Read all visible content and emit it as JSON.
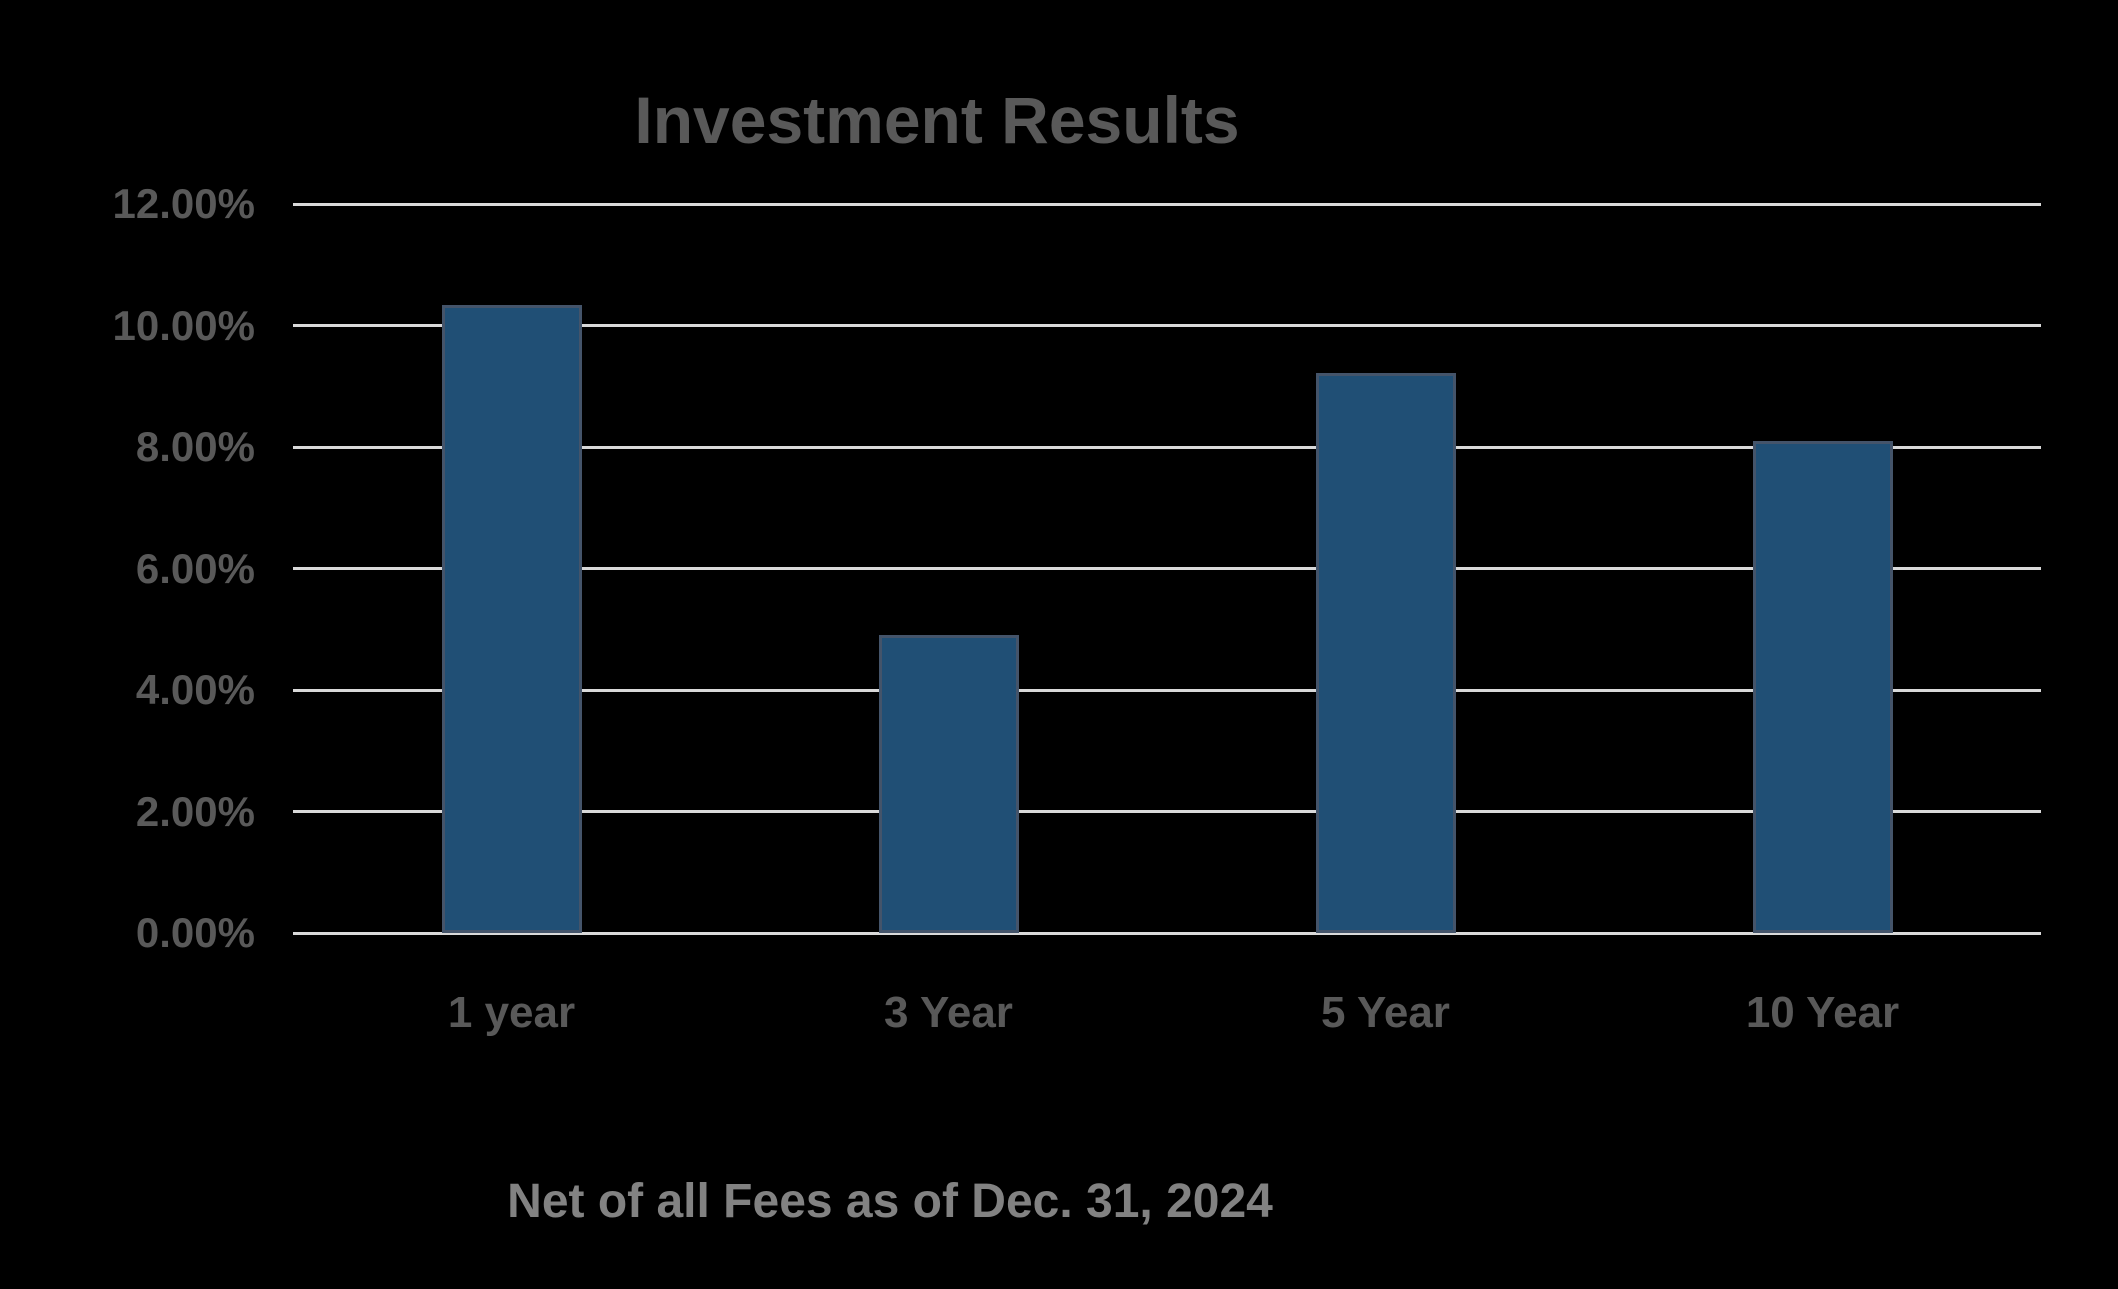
{
  "title": "Investment Results",
  "caption": "Net of all Fees as of Dec. 31, 2024",
  "colors": {
    "background": "#000000",
    "bar_fill": "#204F75",
    "bar_border": "#44546A",
    "gridline": "#D9D9D9",
    "title_text": "#595959",
    "axis_text": "#595959",
    "caption_text": "#828282"
  },
  "chart_data": {
    "type": "bar",
    "categories": [
      "1 year",
      "3 Year",
      "5 Year",
      "10 Year"
    ],
    "values": [
      10.33,
      4.9,
      9.21,
      8.1
    ],
    "title": "Investment Results",
    "subtitle": "Net of all Fees as of Dec. 31, 2024",
    "xlabel": "",
    "ylabel": "",
    "ylim": [
      0,
      12
    ],
    "ytick_step": 2,
    "ytick_labels": [
      "0.00%",
      "2.00%",
      "4.00%",
      "6.00%",
      "8.00%",
      "10.00%",
      "12.00%"
    ],
    "grid": true,
    "legend": false
  }
}
